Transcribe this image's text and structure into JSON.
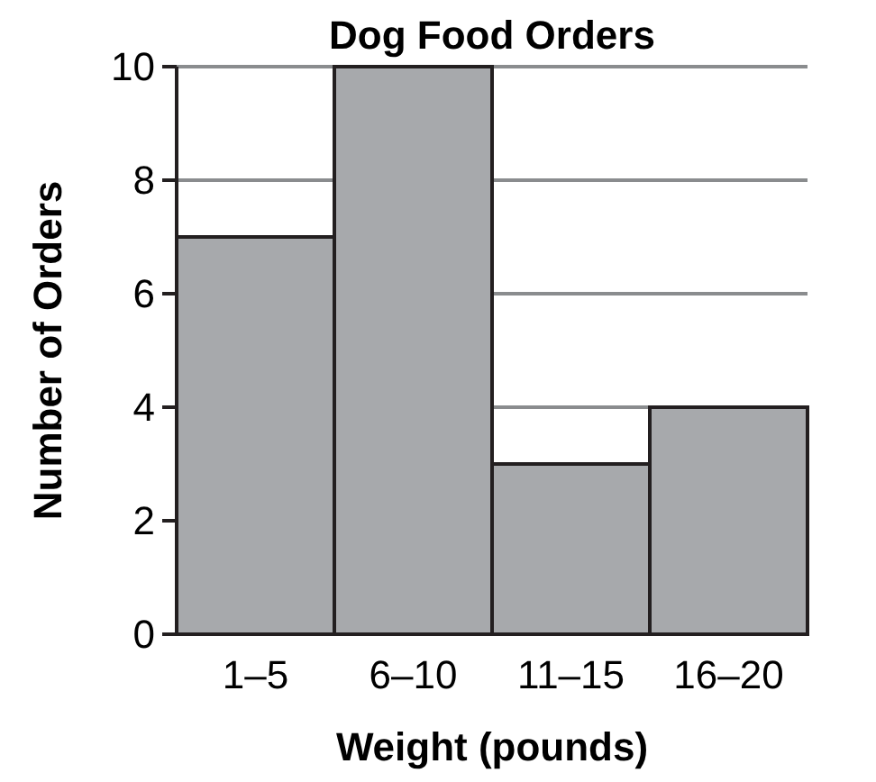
{
  "chart_data": {
    "type": "bar",
    "title": "Dog Food Orders",
    "xlabel": "Weight (pounds)",
    "ylabel": "Number of Orders",
    "categories": [
      "1–5",
      "6–10",
      "11–15",
      "16–20"
    ],
    "values": [
      7,
      10,
      3,
      4
    ],
    "color": "#a7a9ac",
    "ylim": [
      0,
      10
    ],
    "yticks": [
      0,
      2,
      4,
      6,
      8,
      10
    ],
    "grid": "y"
  }
}
